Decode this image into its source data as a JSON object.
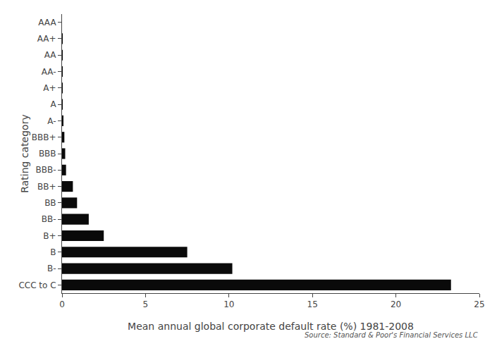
{
  "chart_data": {
    "type": "bar",
    "orientation": "horizontal",
    "categories": [
      "AAA",
      "AA+",
      "AA",
      "AA-",
      "A+",
      "A",
      "A-",
      "BBB+",
      "BBB",
      "BBB-",
      "BB+",
      "BB",
      "BB-",
      "B+",
      "B",
      "B-",
      "CCC to C"
    ],
    "values": [
      0.0,
      0.02,
      0.01,
      0.03,
      0.04,
      0.04,
      0.05,
      0.14,
      0.19,
      0.24,
      0.65,
      0.9,
      1.6,
      2.5,
      7.5,
      10.2,
      23.3
    ],
    "color": "#0a0a0a",
    "xlabel": "Mean annual global corporate default rate (%) 1981-2008",
    "ylabel": "Rating category",
    "xlim": [
      0,
      25
    ],
    "xticks": [
      0,
      5,
      10,
      15,
      20,
      25
    ],
    "annotation": "Source: Standard & Poor's Financial Services LLC",
    "grid": false
  }
}
